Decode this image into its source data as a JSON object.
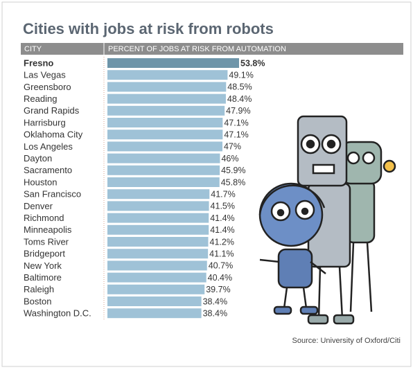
{
  "chart_data": {
    "type": "hbar",
    "title": "Cities with jobs at risk from robots",
    "category_label": "CITY",
    "x_label": "PERCENT OF JOBS AT RISK FROM AUTOMATION",
    "categories": [
      "Fresno",
      "Las Vegas",
      "Greensboro",
      "Reading",
      "Grand Rapids",
      "Harrisburg",
      "Oklahoma City",
      "Los Angeles",
      "Dayton",
      "Sacramento",
      "Houston",
      "San Francisco",
      "Denver",
      "Richmond",
      "Minneapolis",
      "Toms River",
      "Bridgeport",
      "New York",
      "Baltimore",
      "Raleigh",
      "Boston",
      "Washington D.C."
    ],
    "values": [
      53.8,
      49.1,
      48.5,
      48.4,
      47.9,
      47.1,
      47.1,
      47,
      46,
      45.9,
      45.8,
      41.7,
      41.5,
      41.4,
      41.4,
      41.2,
      41.1,
      40.7,
      40.4,
      39.7,
      38.4,
      38.4
    ],
    "value_labels": [
      "53.8%",
      "49.1%",
      "48.5%",
      "48.4%",
      "47.9%",
      "47.1%",
      "47.1%",
      "47%",
      "46%",
      "45.9%",
      "45.8%",
      "41.7%",
      "41.5%",
      "41.4%",
      "41.4%",
      "41.2%",
      "41.1%",
      "40.7%",
      "40.4%",
      "39.7%",
      "38.4%",
      "38.4%"
    ],
    "colors": [
      "#6e95a9",
      "#9fc2d7",
      "#9fc2d7",
      "#9fc2d7",
      "#9fc2d7",
      "#9fc2d7",
      "#9fc2d7",
      "#9fc2d7",
      "#9fc2d7",
      "#9fc2d7",
      "#9fc2d7",
      "#9fc2d7",
      "#9fc2d7",
      "#9fc2d7",
      "#9fc2d7",
      "#9fc2d7",
      "#9fc2d7",
      "#9fc2d7",
      "#9fc2d7",
      "#9fc2d7",
      "#9fc2d7",
      "#9fc2d7"
    ],
    "source": "Source: University of Oxford/Citi"
  }
}
